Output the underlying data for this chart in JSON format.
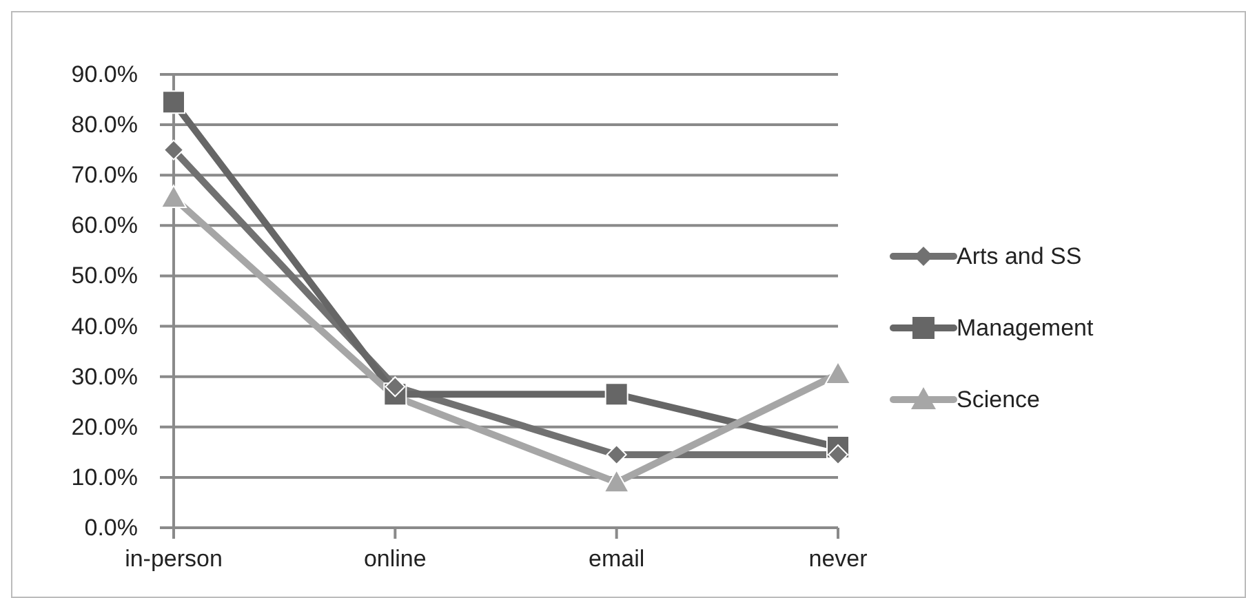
{
  "chart_data": {
    "type": "line",
    "categories": [
      "in-person",
      "online",
      "email",
      "never"
    ],
    "series": [
      {
        "name": "Arts and SS",
        "color": "#717171",
        "marker": "diamond",
        "values": [
          75,
          28,
          14.5,
          14.5
        ]
      },
      {
        "name": "Management",
        "color": "#666666",
        "marker": "square",
        "values": [
          84.5,
          26.5,
          26.5,
          16
        ]
      },
      {
        "name": "Science",
        "color": "#a6a6a6",
        "marker": "triangle",
        "values": [
          65.5,
          26,
          9,
          30.5
        ]
      }
    ],
    "ylim": [
      0,
      90
    ],
    "yticks": [
      {
        "value": 0,
        "label": "0.0%"
      },
      {
        "value": 10,
        "label": "10.0%"
      },
      {
        "value": 20,
        "label": "20.0%"
      },
      {
        "value": 30,
        "label": "30.0%"
      },
      {
        "value": 40,
        "label": "40.0%"
      },
      {
        "value": 50,
        "label": "50.0%"
      },
      {
        "value": 60,
        "label": "60.0%"
      },
      {
        "value": 70,
        "label": "70.0%"
      },
      {
        "value": 80,
        "label": "80.0%"
      },
      {
        "value": 90,
        "label": "90.0%"
      }
    ],
    "grid": "y",
    "legend": "right",
    "line_style": "solid"
  }
}
